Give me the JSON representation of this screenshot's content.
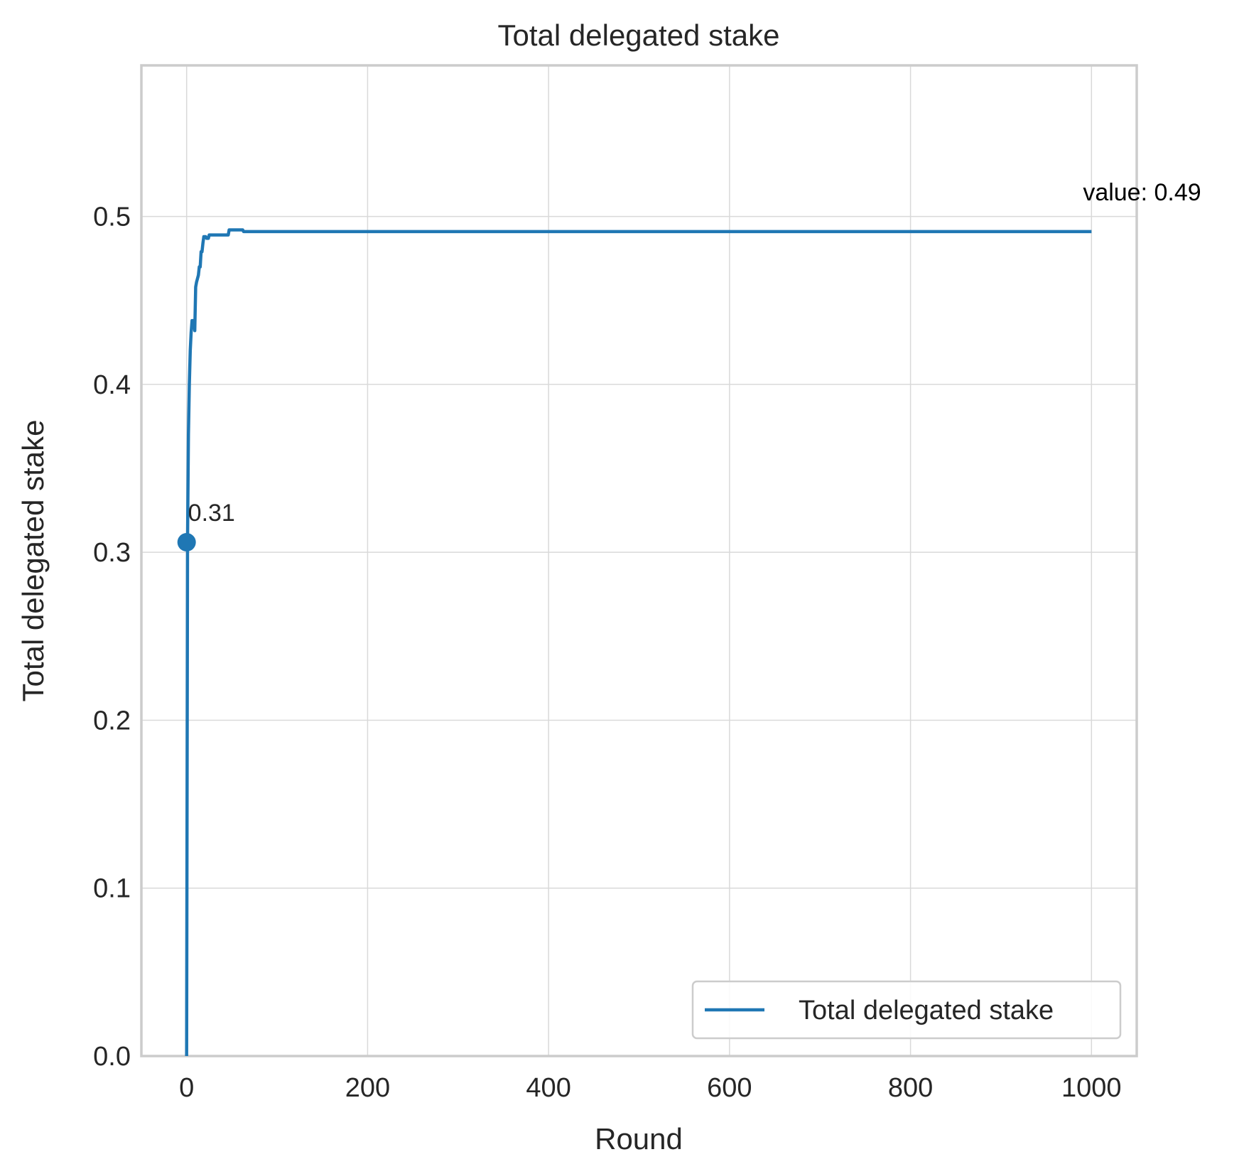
{
  "chart_data": {
    "type": "line",
    "title": "Total delegated stake",
    "xlabel": "Round",
    "ylabel": "Total delegated stake",
    "xlim": [
      -50,
      1050
    ],
    "ylim": [
      0.0,
      0.59
    ],
    "xticks": [
      0,
      200,
      400,
      600,
      800,
      1000
    ],
    "xtick_labels": [
      "0",
      "200",
      "400",
      "600",
      "800",
      "1000"
    ],
    "yticks": [
      0.0,
      0.1,
      0.2,
      0.3,
      0.4,
      0.5
    ],
    "ytick_labels": [
      "0.0",
      "0.1",
      "0.2",
      "0.3",
      "0.4",
      "0.5"
    ],
    "grid": true,
    "legend": {
      "position": "lower-right",
      "entries": [
        "Total delegated stake"
      ]
    },
    "series": [
      {
        "name": "Total delegated stake",
        "color": "#1f77b4",
        "points": [
          [
            0,
            0.0
          ],
          [
            1,
            0.306
          ],
          [
            2,
            0.37
          ],
          [
            3,
            0.4
          ],
          [
            4,
            0.42
          ],
          [
            5,
            0.431
          ],
          [
            6,
            0.438
          ],
          [
            8,
            0.438
          ],
          [
            9,
            0.432
          ],
          [
            10,
            0.458
          ],
          [
            11,
            0.461
          ],
          [
            13,
            0.465
          ],
          [
            14,
            0.47
          ],
          [
            15,
            0.47
          ],
          [
            16,
            0.479
          ],
          [
            17,
            0.479
          ],
          [
            18,
            0.484
          ],
          [
            19,
            0.488
          ],
          [
            21,
            0.488
          ],
          [
            22,
            0.487
          ],
          [
            24,
            0.487
          ],
          [
            25,
            0.489
          ],
          [
            46,
            0.489
          ],
          [
            47,
            0.492
          ],
          [
            62,
            0.492
          ],
          [
            63,
            0.491
          ],
          [
            1000,
            0.491
          ]
        ]
      }
    ],
    "annotations": [
      {
        "text": "0.31",
        "x": 0,
        "y": 0.306,
        "marker": true
      },
      {
        "text": "value: 0.49",
        "x": 1000,
        "y": 0.491,
        "marker": false
      }
    ]
  }
}
